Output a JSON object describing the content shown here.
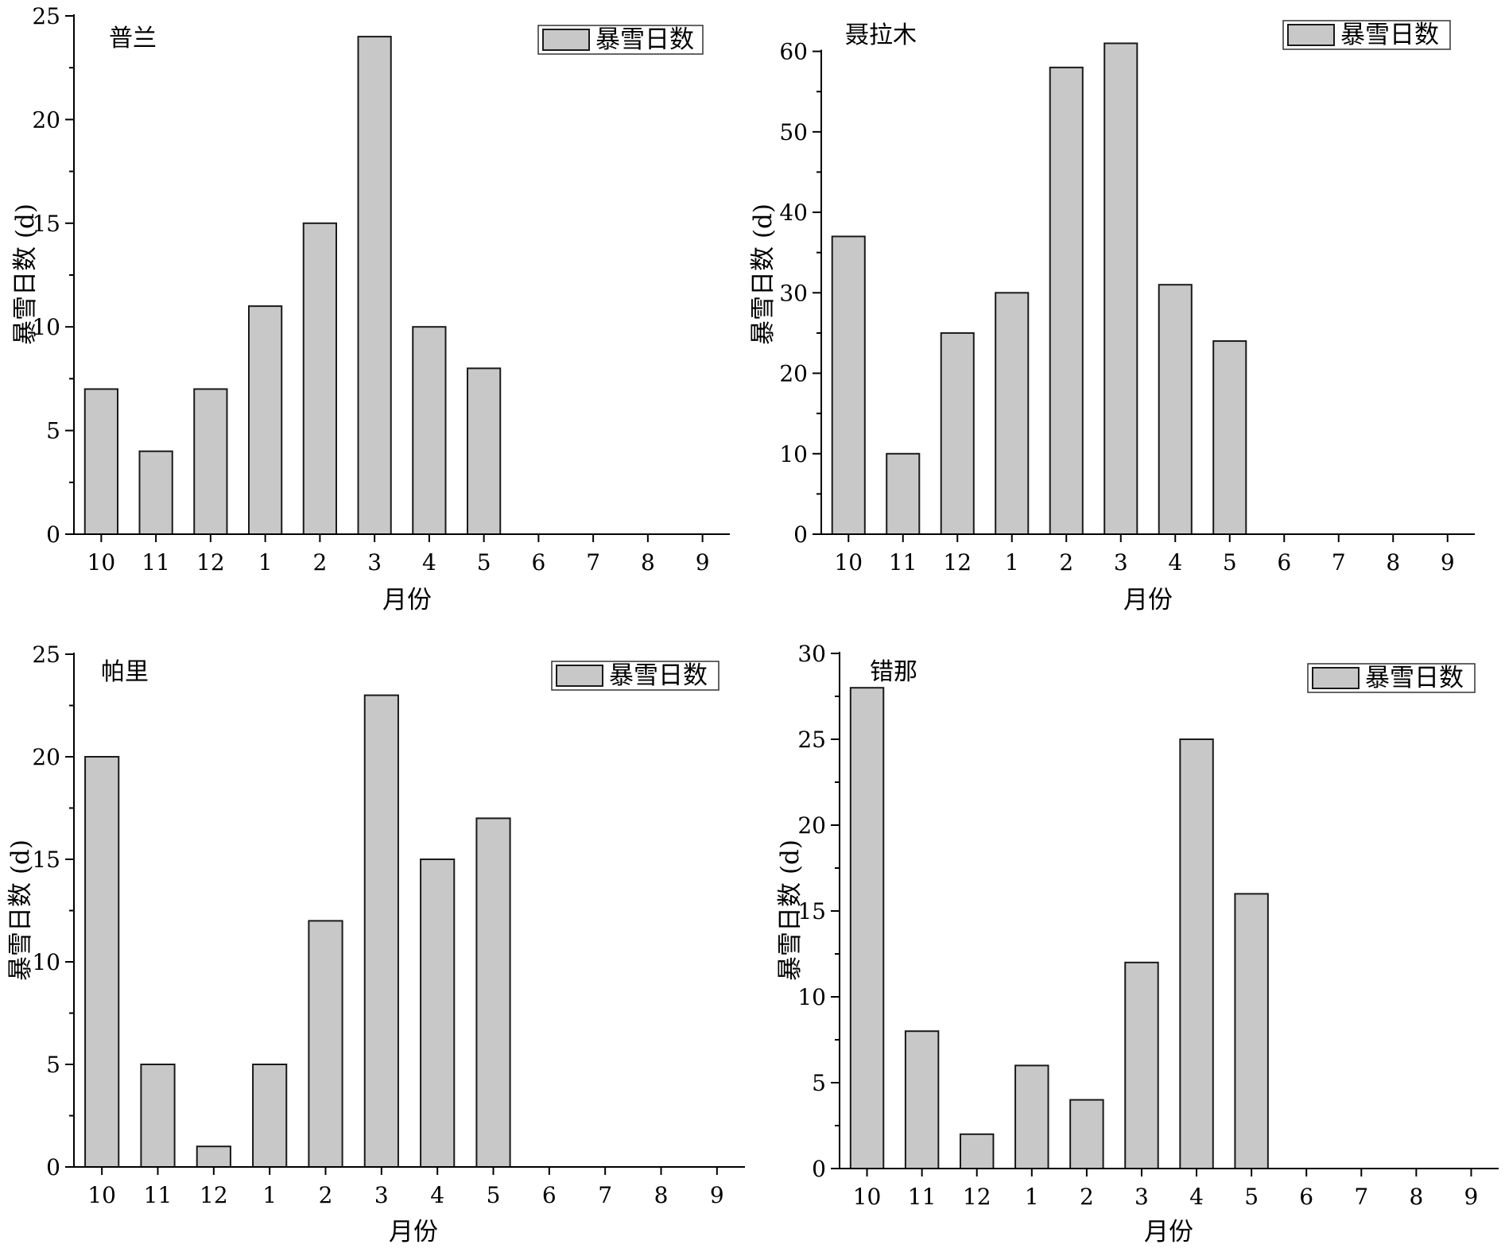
{
  "figure": {
    "x_ticks": [
      "10",
      "11",
      "12",
      "1",
      "2",
      "3",
      "4",
      "5",
      "6",
      "7",
      "8",
      "9"
    ],
    "xlabel": "月份",
    "ylabel": "暴雪日数 (d)",
    "legend_label": "暴雪日数"
  },
  "chart_data": [
    {
      "type": "bar",
      "title": "普兰",
      "categories": [
        "10",
        "11",
        "12",
        "1",
        "2",
        "3",
        "4",
        "5",
        "6",
        "7",
        "8",
        "9"
      ],
      "values": [
        7,
        4,
        7,
        11,
        15,
        24,
        10,
        8,
        0,
        0,
        0,
        0
      ],
      "xlabel": "月份",
      "ylabel": "暴雪日数 (d)",
      "ylim": [
        0,
        25
      ],
      "yticks": [
        0,
        5,
        10,
        15,
        20,
        25
      ],
      "legend": "暴雪日数",
      "bar_color": "#c8c8c8"
    },
    {
      "type": "bar",
      "title": "聂拉木",
      "categories": [
        "10",
        "11",
        "12",
        "1",
        "2",
        "3",
        "4",
        "5",
        "6",
        "7",
        "8",
        "9"
      ],
      "values": [
        37,
        10,
        25,
        30,
        58,
        61,
        31,
        24,
        0,
        0,
        0,
        0
      ],
      "xlabel": "月份",
      "ylabel": "暴雪日数 (d)",
      "ylim": [
        0,
        65
      ],
      "yticks": [
        0,
        10,
        20,
        30,
        40,
        50,
        60
      ],
      "legend": "暴雪日数",
      "bar_color": "#c8c8c8"
    },
    {
      "type": "bar",
      "title": "帕里",
      "categories": [
        "10",
        "11",
        "12",
        "1",
        "2",
        "3",
        "4",
        "5",
        "6",
        "7",
        "8",
        "9"
      ],
      "values": [
        20,
        5,
        1,
        5,
        12,
        23,
        15,
        17,
        0,
        0,
        0,
        0
      ],
      "xlabel": "月份",
      "ylabel": "暴雪日数 (d)",
      "ylim": [
        0,
        25
      ],
      "yticks": [
        0,
        5,
        10,
        15,
        20,
        25
      ],
      "legend": "暴雪日数",
      "bar_color": "#c8c8c8"
    },
    {
      "type": "bar",
      "title": "错那",
      "categories": [
        "10",
        "11",
        "12",
        "1",
        "2",
        "3",
        "4",
        "5",
        "6",
        "7",
        "8",
        "9"
      ],
      "values": [
        28,
        8,
        2,
        6,
        4,
        12,
        25,
        16,
        0,
        0,
        0,
        0
      ],
      "xlabel": "月份",
      "ylabel": "暴雪日数 (d)",
      "ylim": [
        0,
        30
      ],
      "yticks": [
        0,
        5,
        10,
        15,
        20,
        25,
        30
      ],
      "legend": "暴雪日数",
      "bar_color": "#c8c8c8"
    }
  ]
}
